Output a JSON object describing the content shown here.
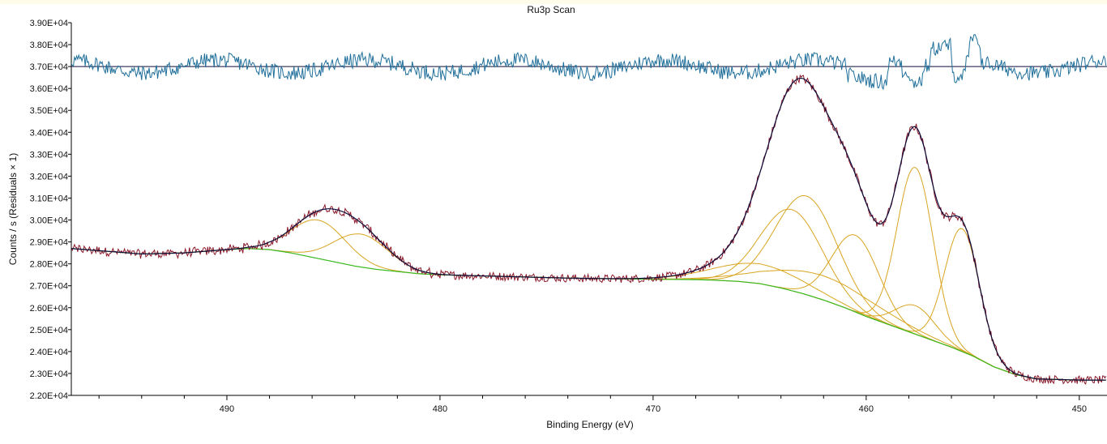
{
  "chart_data": {
    "type": "line",
    "title": "Ru3p Scan",
    "xlabel": "Binding Energy (eV)",
    "ylabel": "Counts / s  (Residuals × 1)",
    "x_reversed": true,
    "xlim": [
      497.3,
      448.7
    ],
    "ylim": [
      22000,
      39000
    ],
    "x_ticks": [
      490,
      480,
      470,
      460,
      450
    ],
    "x_tick_labels": [
      "490",
      "480",
      "470",
      "460",
      "450"
    ],
    "y_ticks": [
      22000,
      23000,
      24000,
      25000,
      26000,
      27000,
      28000,
      29000,
      30000,
      31000,
      32000,
      33000,
      34000,
      35000,
      36000,
      37000,
      38000,
      39000
    ],
    "y_tick_labels": [
      "2.20E+04",
      "2.30E+04",
      "2.40E+04",
      "2.50E+04",
      "2.60E+04",
      "2.70E+04",
      "2.80E+04",
      "2.90E+04",
      "3.00E+04",
      "3.10E+04",
      "3.20E+04",
      "3.30E+04",
      "3.40E+04",
      "3.50E+04",
      "3.60E+04",
      "3.70E+04",
      "3.80E+04",
      "3.90E+04"
    ],
    "grid": false,
    "colors": {
      "data": "#8b1a2b",
      "envelope": "#0d0d3a",
      "background": "#39b81f",
      "components": "#d9a520",
      "residuals": "#1f6f9a",
      "residual_zero": "#0d0d3a"
    },
    "series": [
      {
        "role": "background",
        "x": [
          497.3,
          494,
          492,
          490,
          489,
          488,
          487,
          486,
          485,
          484,
          483,
          482,
          481,
          480,
          478,
          476,
          474,
          472,
          470,
          468,
          467,
          466,
          465,
          464,
          463,
          462,
          461,
          460,
          459,
          458,
          457,
          456,
          455,
          454,
          453,
          452,
          450,
          448.7
        ],
        "y": [
          28700,
          28450,
          28500,
          28650,
          28700,
          28650,
          28500,
          28300,
          28100,
          27900,
          27750,
          27650,
          27550,
          27500,
          27450,
          27400,
          27350,
          27320,
          27300,
          27280,
          27250,
          27200,
          27100,
          26900,
          26650,
          26350,
          26000,
          25600,
          25250,
          24900,
          24550,
          24200,
          23800,
          23300,
          22950,
          22750,
          22700,
          22700
        ]
      },
      {
        "role": "components",
        "peaks": [
          {
            "center": 485.7,
            "height": 1750,
            "fwhm": 3.0
          },
          {
            "center": 483.7,
            "height": 1500,
            "fwhm": 3.0
          },
          {
            "center": 463.5,
            "height": 3700,
            "fwhm": 3.4
          },
          {
            "center": 462.8,
            "height": 4500,
            "fwhm": 3.4
          },
          {
            "center": 460.5,
            "height": 3500,
            "fwhm": 2.6
          },
          {
            "center": 462.0,
            "height": 1100,
            "fwhm": 6.0
          },
          {
            "center": 465.0,
            "height": 900,
            "fwhm": 5.0
          },
          {
            "center": 457.7,
            "height": 7600,
            "fwhm": 2.0
          },
          {
            "center": 457.7,
            "height": 1300,
            "fwhm": 2.2
          },
          {
            "center": 455.5,
            "height": 5600,
            "fwhm": 1.9
          }
        ]
      },
      {
        "role": "residuals",
        "baseline": 37000
      }
    ]
  }
}
